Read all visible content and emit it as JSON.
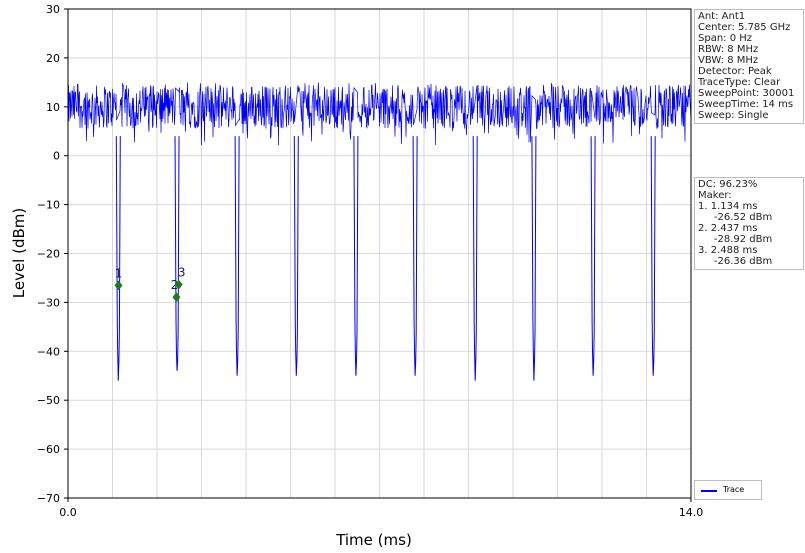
{
  "chart_data": {
    "type": "line",
    "xlabel": "Time (ms)",
    "ylabel": "Level (dBm)",
    "xlim": [
      0.0,
      14.0
    ],
    "ylim": [
      -70,
      30
    ],
    "x_ticks": [
      "0.0",
      "14.0"
    ],
    "y_ticks": [
      30,
      20,
      10,
      0,
      -10,
      -20,
      -30,
      -40,
      -50,
      -60,
      -70
    ],
    "grid": true,
    "series": [
      {
        "name": "Trace",
        "color": "#0000ff",
        "noise_floor_range_dbm": [
          2,
          15
        ],
        "typical_level_dbm": 10,
        "dip_times_ms": [
          1.13,
          2.45,
          3.8,
          5.13,
          6.47,
          7.8,
          9.15,
          10.47,
          11.8,
          13.15
        ],
        "dip_min_dbm": [
          -46,
          -44,
          -45,
          -45,
          -45,
          -45,
          -46,
          -46,
          -45,
          -45
        ]
      }
    ],
    "markers": [
      {
        "label": "1",
        "x": 1.134,
        "y": -26.52
      },
      {
        "label": "2",
        "x": 2.437,
        "y": -28.92
      },
      {
        "label": "3",
        "x": 2.488,
        "y": -26.36
      }
    ],
    "marker_color": "#1e7a1e",
    "legend": {
      "position": "bottom-right",
      "entries": [
        "Trace"
      ]
    }
  },
  "settings_box": {
    "lines": [
      "Ant: Ant1",
      "Center: 5.785 GHz",
      "Span: 0 Hz",
      "RBW: 8 MHz",
      "VBW: 8 MHz",
      "Detector: Peak",
      "TraceType: Clear",
      "SweepPoint: 30001",
      "SweepTime: 14 ms",
      "Sweep: Single"
    ]
  },
  "dc_box": {
    "lines": [
      "DC: 96.23%",
      "Maker:",
      "1. 1.134 ms",
      "     -26.52 dBm",
      "2. 2.437 ms",
      "     -28.92 dBm",
      "3. 2.488 ms",
      "     -26.36 dBm"
    ]
  }
}
